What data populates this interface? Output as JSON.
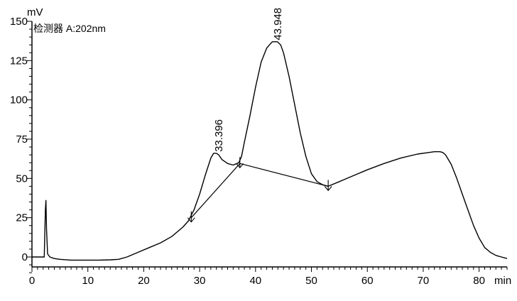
{
  "colors": {
    "line": "#000000",
    "background": "#ffffff"
  },
  "chart_data": {
    "type": "line",
    "title": "",
    "detector_label": "检测器 A:202nm",
    "ylabel": "mV",
    "xlabel": "min",
    "xlim": [
      0,
      85
    ],
    "ylim": [
      -10,
      150
    ],
    "x_ticks": [
      0,
      10,
      20,
      30,
      40,
      50,
      60,
      70,
      80
    ],
    "y_ticks": [
      0,
      25,
      50,
      75,
      100,
      125,
      150
    ],
    "x_minor_step": 1,
    "y_minor_step": 5,
    "grid": false,
    "series": [
      {
        "x": [
          0,
          1.5,
          2.2,
          2.4,
          2.5,
          2.6,
          2.8,
          3.2,
          4,
          5,
          7,
          10,
          12,
          14,
          15.5,
          17,
          19,
          21,
          23,
          25,
          26,
          27,
          28,
          29,
          30,
          31,
          32,
          32.5,
          33,
          33.4,
          34,
          35,
          36,
          37,
          37.5,
          38,
          39,
          40,
          41,
          42,
          43,
          43.9,
          44.5,
          45,
          46,
          47,
          48,
          49,
          50,
          51,
          52,
          53,
          55,
          57,
          60,
          63,
          66,
          69,
          71,
          72,
          73,
          73.5,
          74,
          75,
          76,
          77,
          78,
          79,
          80,
          81,
          82,
          83,
          84,
          85
        ],
        "y": [
          0,
          0,
          0,
          30,
          36,
          18,
          2,
          0,
          -1,
          -1.5,
          -2,
          -2,
          -2,
          -1.8,
          -1.5,
          0,
          3,
          6,
          9,
          13,
          16,
          19,
          23,
          30,
          40,
          52,
          63,
          66,
          66,
          65,
          62,
          59.5,
          58.5,
          60,
          64,
          73,
          90,
          108,
          124,
          133,
          137,
          137,
          135,
          130,
          115,
          97,
          79,
          64,
          53,
          48,
          46,
          45,
          48,
          51,
          55.5,
          59.5,
          63,
          65.5,
          66.5,
          67,
          67,
          66.5,
          65,
          59,
          50,
          40,
          30,
          20,
          12,
          6,
          3,
          1,
          0,
          -1
        ]
      }
    ],
    "baselines": [
      {
        "x": [
          28.5,
          37.2
        ],
        "y": [
          25,
          59.5
        ]
      },
      {
        "x": [
          37.2,
          53
        ],
        "y": [
          59.5,
          45
        ]
      }
    ],
    "peaks": [
      {
        "label": "33.396",
        "x": 33.4,
        "y": 66
      },
      {
        "label": "43.948",
        "x": 43.95,
        "y": 137
      }
    ],
    "markers": [
      {
        "x": 28.5,
        "y": 25
      },
      {
        "x": 37.2,
        "y": 59.5
      },
      {
        "x": 53,
        "y": 45
      }
    ]
  }
}
